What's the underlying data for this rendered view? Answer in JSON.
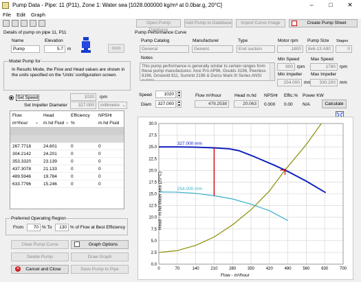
{
  "window": {
    "title": "Pump Data - Pipe: 11 (P11), Zone 1: Water sea [1028.000000 kg/m³ at 0.0bar.g, 20°C]",
    "minimize": "–",
    "maximize": "□",
    "close": "✕"
  },
  "menu": [
    "File",
    "Edit",
    "Graph"
  ],
  "toolbar": {
    "open_db": "Open Pump Database",
    "add_db": "Add Pump to Database",
    "import_curve": "Import Curve Image",
    "create_sheet": "Create Pump Sheet"
  },
  "details": {
    "header": "Details of pump on pipe 11, P11",
    "name_label": "Name",
    "name_value": "Pump",
    "elevation_label": "Elevation",
    "elevation_value": "5.7",
    "elevation_unit": "m",
    "icon_button": "Icon"
  },
  "model": {
    "header": "Model Pump for",
    "info": "In Results Mode, the Flow and Head values are shown in the units specified on the 'Units' configuration screen.",
    "set_speed_label": "Set Speed",
    "set_speed_value": "1020",
    "set_speed_unit": "rpm",
    "set_diameter_label": "Set Impeller Diameter",
    "set_diameter_value": "327.000",
    "set_diameter_unit": "millimetre"
  },
  "table": {
    "headers": [
      "Flow",
      "Head",
      "Efficiency",
      "NPSHr"
    ],
    "units": [
      "m³/hour",
      "m.hd Fluid",
      "%",
      "m.hd Fluid"
    ],
    "rows": [
      [
        "267.7718",
        "24.601",
        "0",
        "0"
      ],
      [
        "304.2142",
        "24.201",
        "0",
        "0"
      ],
      [
        "353.3320",
        "23.139",
        "0",
        "0"
      ],
      [
        "437.3078",
        "21.133",
        "0",
        "0"
      ],
      [
        "489.5946",
        "19.784",
        "0",
        "0"
      ],
      [
        "633.7796",
        "15.246",
        "0",
        "0"
      ]
    ]
  },
  "region": {
    "header": "Preferred Operating Region",
    "from_label": "From",
    "from_value": "70",
    "pct_to": "% To",
    "to_value": "130",
    "suffix": "% of Flow at Best Efficiency"
  },
  "buttons": {
    "clear_curve": "Clear Pump Curve",
    "graph_options": "Graph Options",
    "delete_pump": "Delete Pump",
    "draw_graph": "Draw Graph",
    "cancel_close": "Cancel and Close",
    "save_pipe": "Save Pump to Pipe"
  },
  "performance": {
    "header": "Pump Performance Curve",
    "catalog_label": "Pump Catalog",
    "catalog_value": "General",
    "manufacturer_label": "Manufacturer",
    "manufacturer_value": "Generic",
    "type_label": "Type",
    "type_value": "End suction",
    "motor_label": "Motor rpm",
    "motor_value": "1800",
    "size_label": "Pump Size",
    "size_value": "8x6-13 A90",
    "stages_label": "Stages",
    "stages_value": "0",
    "notes_label": "Notes",
    "notes_value": "This pump performance is generally similar to certain ranges from these pump manufactures: Ansi Pro AP96, Goulds 3196, Peerless 8196, Griswold 811, Summit 2196 & Durco Mark III Series ANSI pumps.",
    "min_speed_label": "Min Speed",
    "min_speed_value": "900",
    "min_speed_unit": "rpm",
    "max_speed_label": "Max Speed",
    "max_speed_value": "1780",
    "max_speed_unit": "rpm",
    "min_impeller_label": "Min Impeller",
    "min_impeller_value": "254.000",
    "min_impeller_unit": "mm",
    "max_impeller_label": "Max Impeller",
    "max_impeller_value": "330.200",
    "max_impeller_unit": "mm"
  },
  "operating": {
    "speed_label": "Speed",
    "speed_value": "1020",
    "diam_label": "Diam",
    "diam_value": "327.000",
    "flow_label": "Flow m³/hour",
    "flow_value": "479.2538",
    "head_label": "Head m.hd",
    "head_value": "20.063",
    "npshr_label": "NPSHr",
    "npshr_value": "0.000",
    "eff_label": "Effic.%",
    "eff_value": "0.00",
    "power_label": "Power KW",
    "power_value": "N/A",
    "calculate": "Calculate"
  },
  "chart_data": {
    "type": "line",
    "xlabel": "Flow - m³/hour",
    "ylabel": "Head - m.hd Water sea (20°C)",
    "xlim": [
      0,
      700
    ],
    "ylim": [
      0,
      30
    ],
    "xticks": [
      0,
      70,
      140,
      210,
      280,
      350,
      420,
      490,
      560,
      630,
      700
    ],
    "yticks": [
      0.0,
      2.5,
      5.0,
      7.5,
      10.0,
      12.5,
      15.0,
      17.5,
      20.0,
      22.5,
      25.0,
      27.5,
      30.0
    ],
    "grid": true,
    "annotations": [
      "327.000 mm",
      "254.000 mm"
    ],
    "series": [
      {
        "name": "327.000 mm",
        "color": "#1020c0",
        "x": [
          0,
          70,
          140,
          210,
          267.8,
          304.2,
          353.3,
          437.3,
          489.6,
          560,
          633.8
        ],
        "y": [
          25.0,
          25.0,
          24.95,
          24.8,
          24.601,
          24.201,
          23.139,
          21.133,
          19.784,
          17.7,
          15.246
        ]
      },
      {
        "name": "254.000 mm",
        "color": "#38b0c8",
        "x": [
          0,
          70,
          140,
          210,
          280,
          350,
          420,
          490
        ],
        "y": [
          15.4,
          15.35,
          15.1,
          14.6,
          13.9,
          12.8,
          11.4,
          9.3
        ]
      },
      {
        "name": "",
        "color": "#8a8a00",
        "x": [
          0,
          70,
          140,
          210,
          280,
          350,
          420,
          479.25,
          560,
          630
        ],
        "y": [
          2.5,
          2.9,
          4.0,
          5.8,
          8.4,
          11.6,
          15.6,
          20.063,
          25.5,
          31
        ]
      }
    ],
    "markers": [
      {
        "x": 210,
        "y0": 14.6,
        "y1": 24.8,
        "color": "#cc0000"
      },
      {
        "x": 479.25,
        "y": 20.063,
        "color": "#cc0000"
      }
    ]
  }
}
